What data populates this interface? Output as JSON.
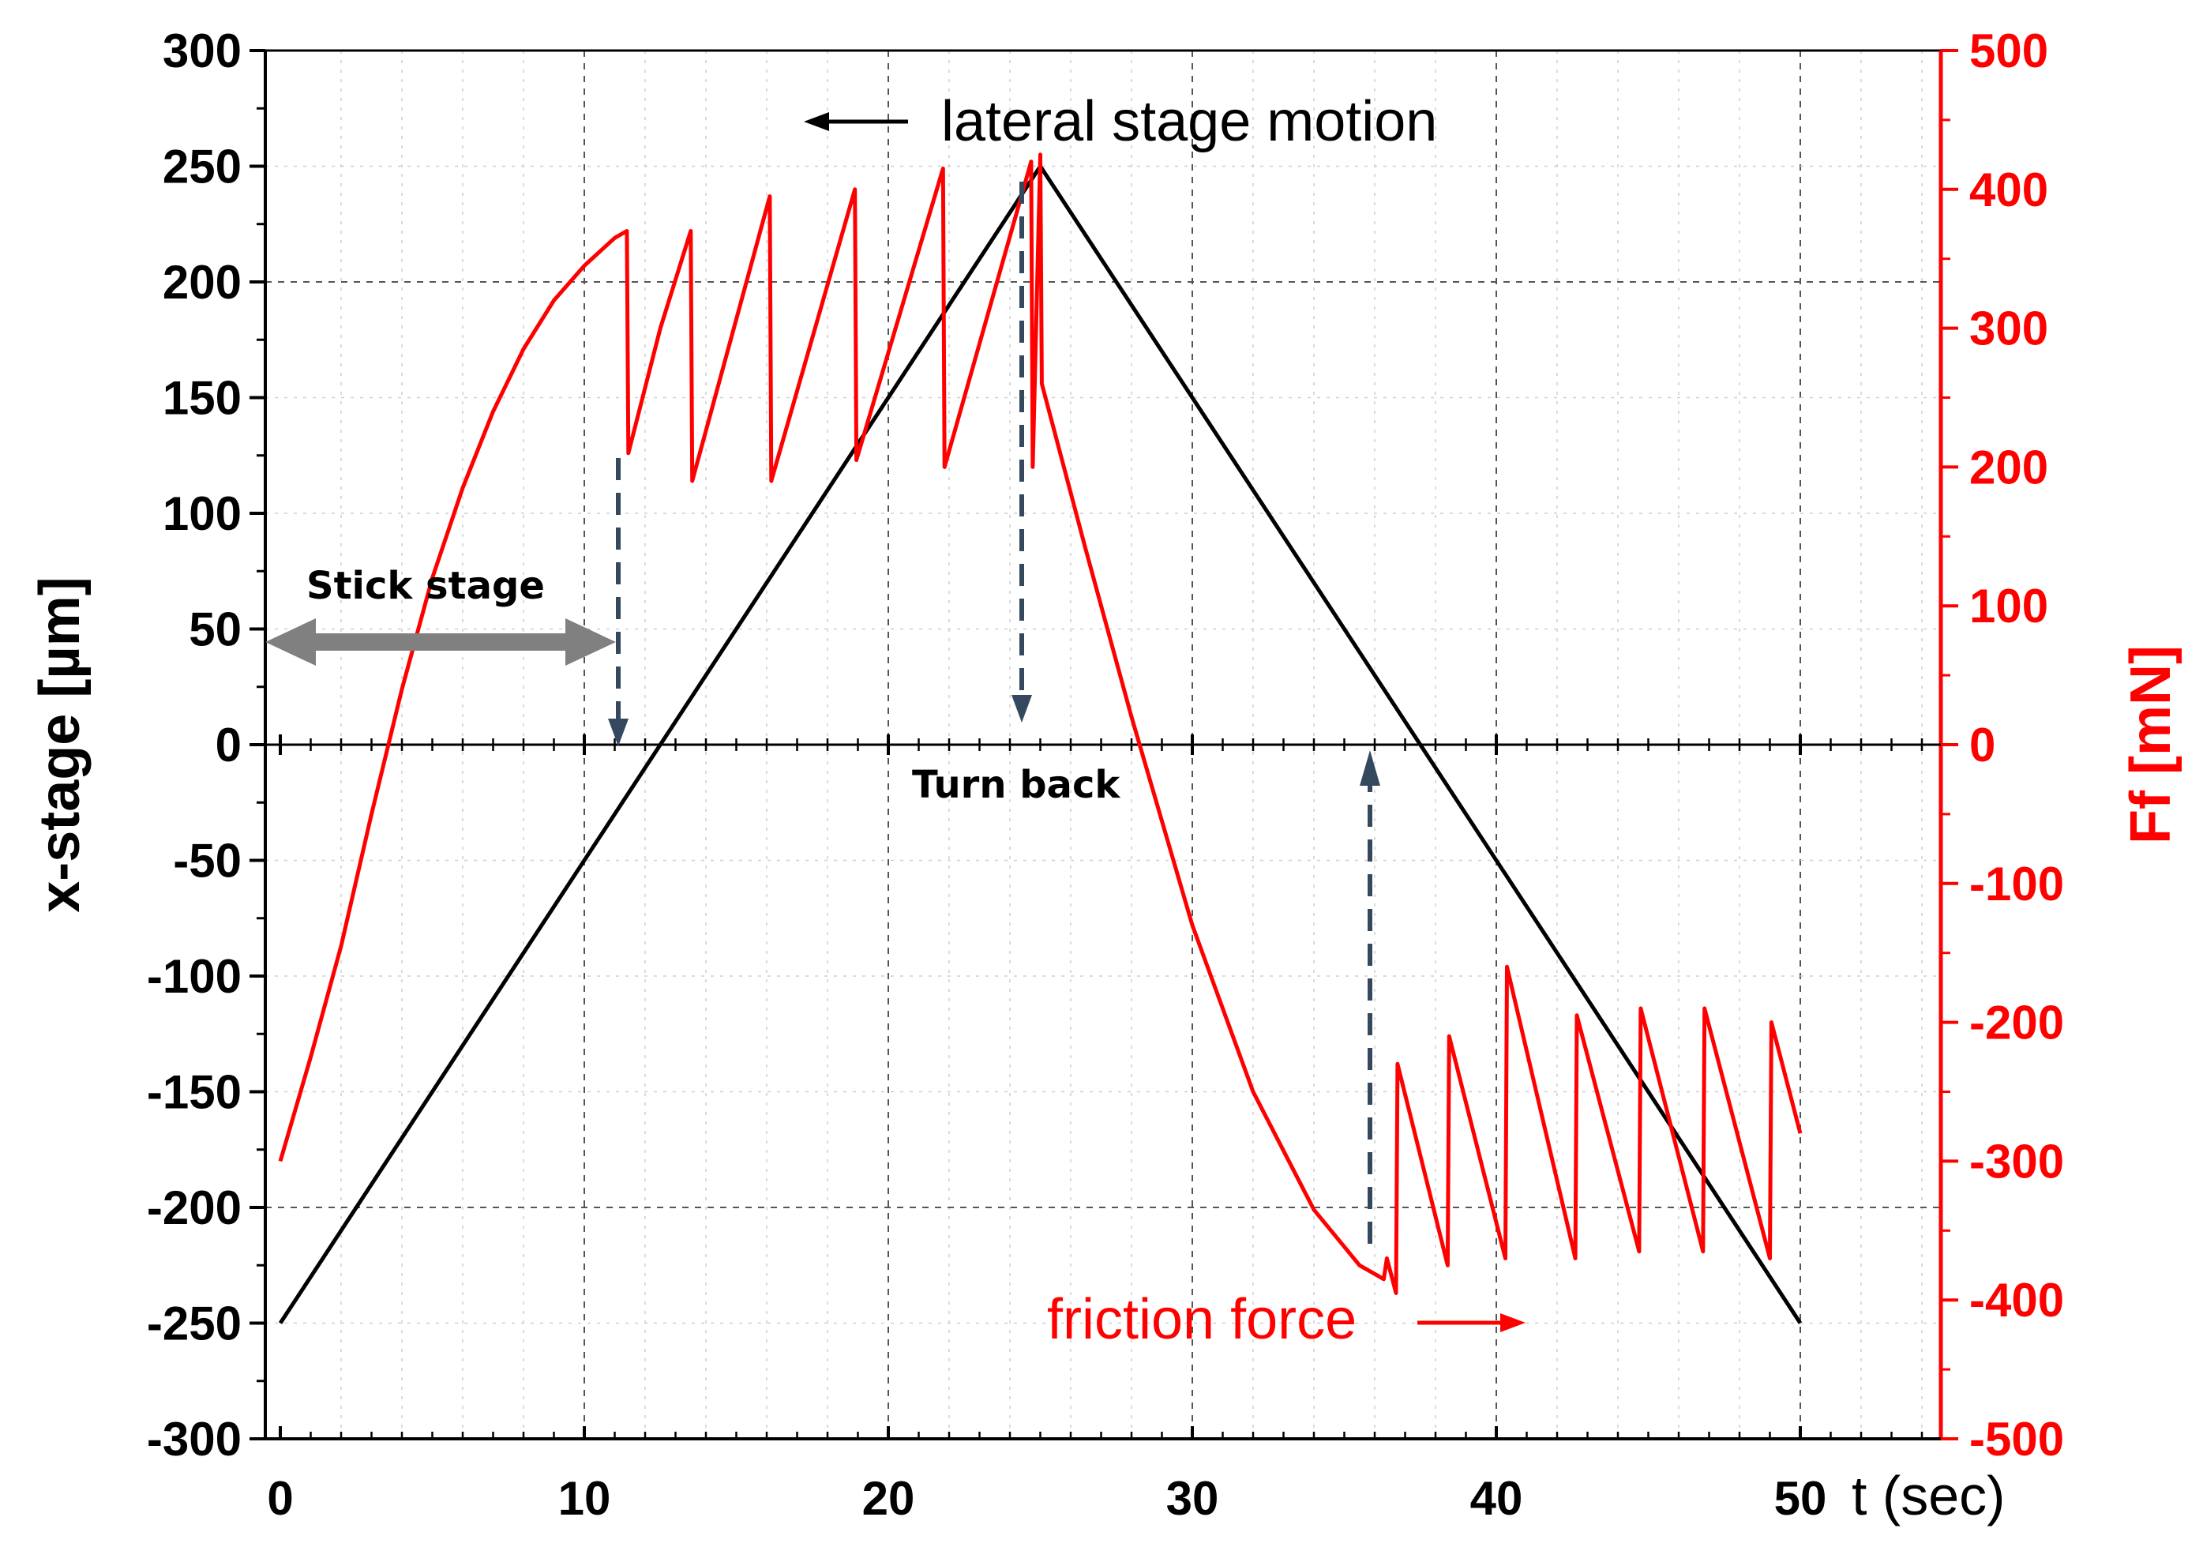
{
  "chart_data": {
    "type": "line",
    "xlabel": "t (sec)",
    "ylabel_left": "x-stage [µm]",
    "ylabel_right": "Ff [mN]",
    "xlim": [
      0,
      55
    ],
    "ylim_left": [
      -300,
      300
    ],
    "ylim_right": [
      -500,
      500
    ],
    "x_ticks": [
      0,
      10,
      20,
      30,
      40,
      50
    ],
    "y_left_ticks": [
      -300,
      -250,
      -200,
      -150,
      -100,
      -50,
      0,
      50,
      100,
      150,
      200,
      250,
      300
    ],
    "y_right_ticks": [
      -500,
      -400,
      -300,
      -200,
      -100,
      0,
      100,
      200,
      300,
      400,
      500
    ],
    "grid": true,
    "colors": {
      "stage": "#000000",
      "friction": "#ff0000",
      "marker_arrow": "#34495e",
      "stick_arrow": "#808080"
    },
    "series": [
      {
        "axis": "left",
        "x": [
          0,
          25,
          50
        ],
        "y": [
          -250,
          250,
          -250
        ]
      },
      {
        "axis": "right",
        "x": [
          0,
          1,
          2,
          3,
          4,
          5,
          6,
          7,
          8,
          9,
          10,
          11,
          11.4,
          11.45,
          12.5,
          13.5,
          13.55,
          16.1,
          16.15,
          18.9,
          18.95,
          21.8,
          21.85,
          24.7,
          24.75,
          25.0,
          25.05,
          26.5,
          28.0,
          30.0,
          32.0,
          34.0,
          35.5,
          36.3,
          36.4,
          36.7,
          36.75,
          38.4,
          38.45,
          40.3,
          40.35,
          42.6,
          42.65,
          44.7,
          44.75,
          46.8,
          46.85,
          49.0,
          49.05,
          50.0
        ],
        "y": [
          -300,
          -225,
          -145,
          -50,
          40,
          120,
          185,
          240,
          285,
          320,
          345,
          365,
          370,
          210,
          300,
          370,
          190,
          395,
          190,
          400,
          205,
          415,
          200,
          420,
          200,
          425,
          260,
          140,
          20,
          -130,
          -250,
          -335,
          -375,
          -385,
          -370,
          -395,
          -230,
          -375,
          -210,
          -370,
          -160,
          -370,
          -195,
          -365,
          -190,
          -365,
          -190,
          -370,
          -200,
          -280
        ]
      }
    ],
    "annotations": {
      "lateral_stage_motion": "lateral stage motion",
      "friction_force": "friction force",
      "stick_stage": "Stick stage",
      "turn_back": "Turn back"
    }
  }
}
